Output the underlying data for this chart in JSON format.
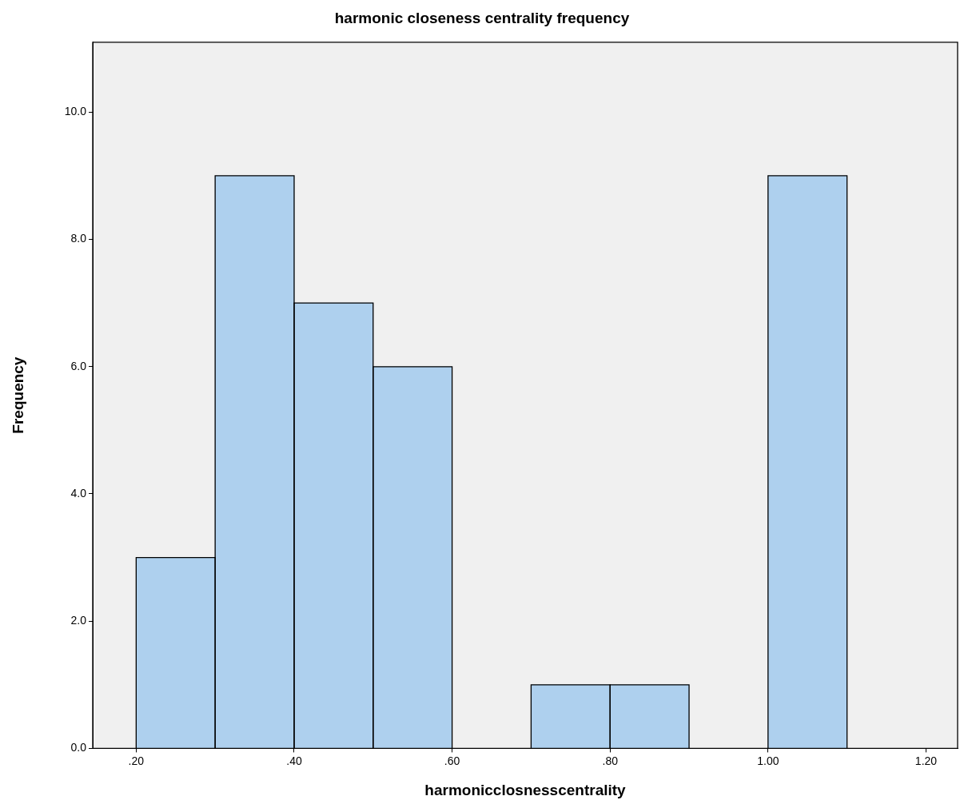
{
  "chart_data": {
    "type": "histogram",
    "title": "harmonic closeness centrality frequency",
    "xlabel": "harmonicclosnesscentrality",
    "ylabel": "Frequency",
    "bins": [
      0.2,
      0.3,
      0.4,
      0.5,
      0.6,
      0.7,
      0.8,
      0.9,
      1.0,
      1.1
    ],
    "values": [
      3,
      9,
      7,
      6,
      0,
      1,
      1,
      0,
      9
    ],
    "color": "#aed0ee",
    "xlim": [
      0.145,
      1.24
    ],
    "xticks": [
      {
        "value": 0.2,
        "label": ".20"
      },
      {
        "value": 0.4,
        "label": ".40"
      },
      {
        "value": 0.6,
        "label": ".60"
      },
      {
        "value": 0.8,
        "label": ".80"
      },
      {
        "value": 1.0,
        "label": "1.00"
      },
      {
        "value": 1.2,
        "label": "1.20"
      }
    ],
    "ylim": [
      0,
      11.1
    ],
    "yticks": [
      {
        "value": 0,
        "label": "0.0"
      },
      {
        "value": 2,
        "label": "2.0"
      },
      {
        "value": 4,
        "label": "4.0"
      },
      {
        "value": 6,
        "label": "6.0"
      },
      {
        "value": 8,
        "label": "8.0"
      },
      {
        "value": 10,
        "label": "10.0"
      }
    ],
    "grid": false,
    "legend": false
  }
}
